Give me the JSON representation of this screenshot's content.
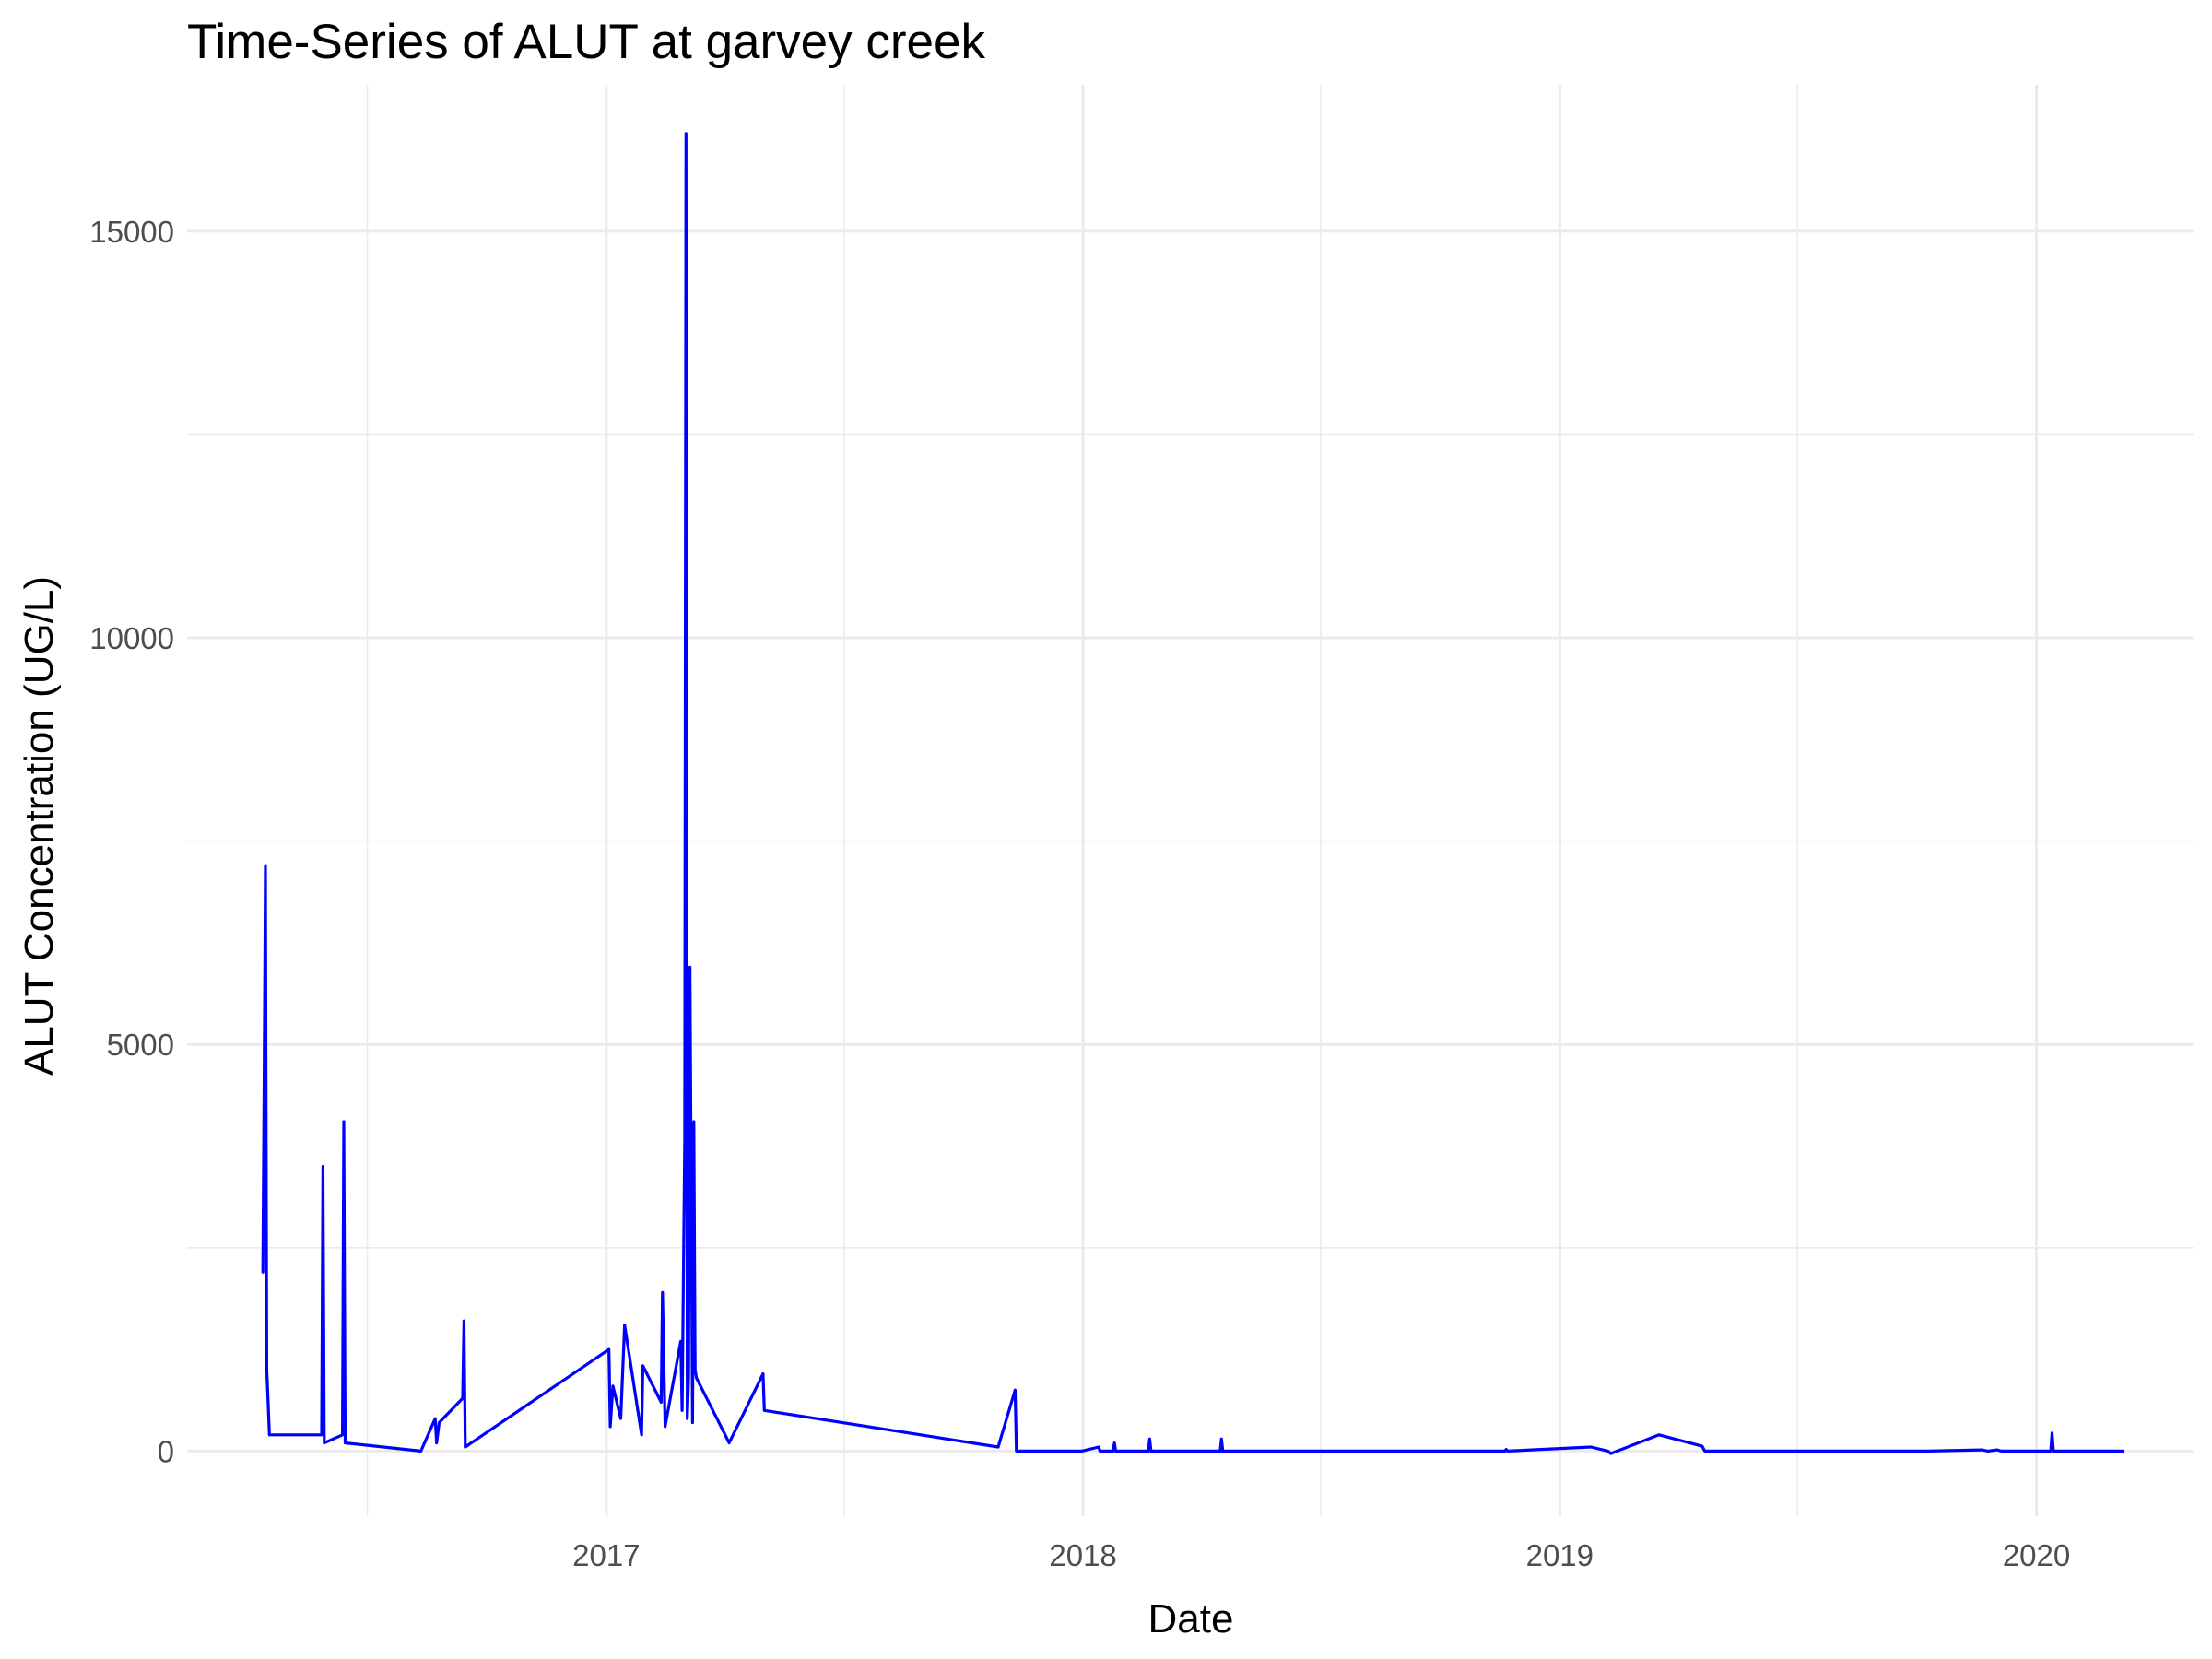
{
  "chart_data": {
    "type": "line",
    "title": "Time-Series of ALUT at garvey creek",
    "xlabel": "Date",
    "ylabel": "ALUT Concentration (UG/L)",
    "x_ticks": [
      "2017",
      "2018",
      "2019",
      "2020"
    ],
    "y_ticks": [
      "0",
      "5000",
      "10000",
      "15000"
    ],
    "xlim": [
      "2016-02-15",
      "2020-05-01"
    ],
    "ylim": [
      -800,
      16800
    ],
    "grid": true,
    "legend": "none",
    "line_color": "#0000ff",
    "series": [
      {
        "x": [
          "2016-04-13",
          "2016-04-14",
          "2016-04-15",
          "2016-04-16",
          "2016-04-17",
          "2016-04-18",
          "2016-05-28",
          "2016-05-29",
          "2016-05-30",
          "2016-06-13",
          "2016-06-14",
          "2016-06-15",
          "2016-08-12",
          "2016-08-23",
          "2016-08-24",
          "2016-08-26",
          "2016-09-13",
          "2016-09-14",
          "2016-09-15",
          "2017-01-03",
          "2017-01-04",
          "2017-01-06",
          "2017-01-12",
          "2017-01-15",
          "2017-01-28",
          "2017-01-29",
          "2017-02-12",
          "2017-02-13",
          "2017-02-15",
          "2017-02-27",
          "2017-02-28",
          "2017-03-02",
          "2017-03-03",
          "2017-03-04",
          "2017-03-05",
          "2017-03-06",
          "2017-03-08",
          "2017-03-09",
          "2017-03-10",
          "2017-03-11",
          "2017-04-02",
          "2017-04-05",
          "2017-05-01",
          "2017-05-02",
          "2017-10-28",
          "2017-11-10",
          "2017-11-11",
          "2017-11-12",
          "2017-12-31",
          "2018-01-13",
          "2018-01-14",
          "2018-01-24",
          "2018-01-25",
          "2018-01-26",
          "2018-02-20",
          "2018-02-21",
          "2018-02-22",
          "2018-04-16",
          "2018-04-17",
          "2018-04-18",
          "2018-05-10",
          "2018-11-20",
          "2018-11-21",
          "2018-11-22",
          "2019-01-25",
          "2019-02-07",
          "2019-02-09",
          "2019-03-18",
          "2019-04-20",
          "2019-04-22",
          "2019-10-10",
          "2019-11-20",
          "2019-11-25",
          "2019-12-02",
          "2019-12-05",
          "2019-12-10",
          "2020-01-12",
          "2020-01-13",
          "2020-01-14",
          "2020-03-07"
        ],
        "y": [
          2200,
          4600,
          7200,
          1000,
          600,
          200,
          200,
          3500,
          100,
          200,
          4050,
          100,
          0,
          400,
          100,
          350,
          650,
          1600,
          50,
          1250,
          300,
          800,
          400,
          1550,
          200,
          1050,
          600,
          1950,
          300,
          1350,
          500,
          3800,
          16200,
          400,
          900,
          5950,
          350,
          4050,
          1000,
          900,
          200,
          100,
          950,
          500,
          50,
          750,
          0,
          0,
          0,
          50,
          0,
          0,
          100,
          0,
          0,
          150,
          0,
          0,
          150,
          0,
          0,
          0,
          20,
          0,
          50,
          0,
          -30,
          200,
          60,
          0,
          0,
          15,
          0,
          15,
          0,
          0,
          0,
          220,
          0,
          0
        ]
      }
    ]
  }
}
